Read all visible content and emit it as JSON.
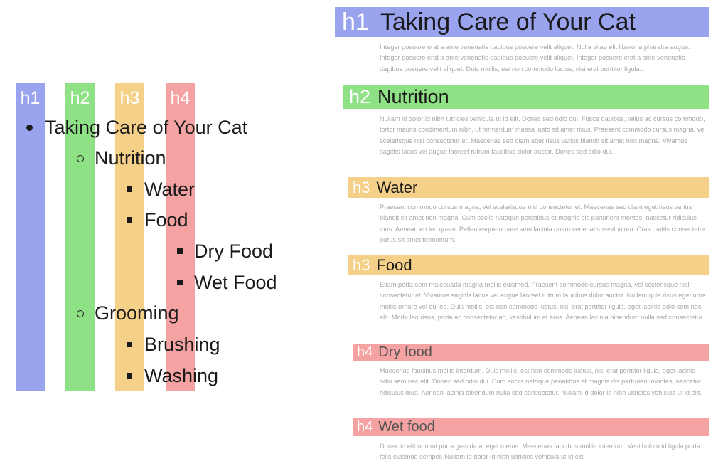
{
  "colors": {
    "h1": "#9aa3ee",
    "h2": "#8fe186",
    "h3": "#f4d088",
    "h4": "#f4a3a2"
  },
  "outline": {
    "level_tags": [
      "h1",
      "h2",
      "h3",
      "h4"
    ],
    "items": [
      {
        "label": "Taking Care of Your Cat",
        "level": 1,
        "bullet": "disc"
      },
      {
        "label": "Nutrition",
        "level": 2,
        "bullet": "circle"
      },
      {
        "label": "Water",
        "level": 3,
        "bullet": "square"
      },
      {
        "label": "Food",
        "level": 3,
        "bullet": "square"
      },
      {
        "label": "Dry Food",
        "level": 4,
        "bullet": "square"
      },
      {
        "label": "Wet Food",
        "level": 4,
        "bullet": "square"
      },
      {
        "label": "Grooming",
        "level": 2,
        "bullet": "circle"
      },
      {
        "label": "Brushing",
        "level": 3,
        "bullet": "square"
      },
      {
        "label": "Washing",
        "level": 3,
        "bullet": "square"
      }
    ]
  },
  "document": {
    "sections": [
      {
        "tag": "h1",
        "title": "Taking Care of Your Cat",
        "text": "Integer posuere erat a ante venenatis dapibus posuere velit aliquet. Nulla vitae elit libero, a pharetra augue. Integer posuere erat a ante venenatis dapibus posuere velit aliquet. Integer posuere erat a ante venenatis dapibus posuere velit aliquet. Duis mollis, est non commodo luctus, nisi erat porttitor ligula.."
      },
      {
        "tag": "h2",
        "title": "Nutrition",
        "text": "Nullam id dolor id nibh ultricies vehicula ut id elit. Donec sed odio dui. Fusce dapibus, tellus ac cursus commodo, tortor mauris condimentum nibh, ut fermentum massa justo sit amet risus. Praesent commodo cursus magna, vel scelerisque nisl consectetur et. Maecenas sed diam eget risus varius blandit sit amet non magna. Vivamus sagittis lacus vel augue laoreet rutrum faucibus dolor auctor. Donec sed odio dui."
      },
      {
        "tag": "h3",
        "title": "Water",
        "text": "Praesent commodo cursus magna, vel scelerisque nisl consectetur et. Maecenas sed diam eget risus varius blandit sit amet non magna. Cum sociis natoque penatibus et magnis dis parturient montes, nascetur ridiculus mus. Aenean eu leo quam. Pellentesque ornare sem lacinia quam venenatis vestibulum. Cras mattis consectetur purus sit amet fermentum."
      },
      {
        "tag": "h3",
        "title": "Food",
        "text": "Etiam porta sem malesuada magna mollis euismod. Praesent commodo cursus magna, vel scelerisque nisl consectetur et. Vivamus sagittis lacus vel augue laoreet rutrum faucibus dolor auctor. Nullam quis risus eget urna mollis ornare vel eu leo. Duis mollis, est non commodo luctus, nisi erat porttitor ligula, eget lacinia odio sem nec elit. Morbi leo risus, porta ac consectetur ac, vestibulum at eros. Aenean lacinia bibendum nulla sed consectetur."
      },
      {
        "tag": "h4",
        "title": "Dry food",
        "text": "Maecenas faucibus mollis interdum. Duis mollis, est non commodo luctus, nisi erat porttitor ligula, eget lacinia odio sem nec elit. Donec sed odio dui. Cum sociis natoque penatibus et magnis dis parturient montes, nascetur ridiculus mus. Aenean lacinia bibendum nulla sed consectetur. Nullam id dolor id nibh ultricies vehicula ut id elit."
      },
      {
        "tag": "h4",
        "title": "Wet food",
        "text": "Donec id elit non mi porta gravida at eget metus. Maecenas faucibus mollis interdum. Vestibulum id ligula porta felis euismod semper. Nullam id dolor id nibh ultricies vehicula ut id elit."
      }
    ]
  }
}
